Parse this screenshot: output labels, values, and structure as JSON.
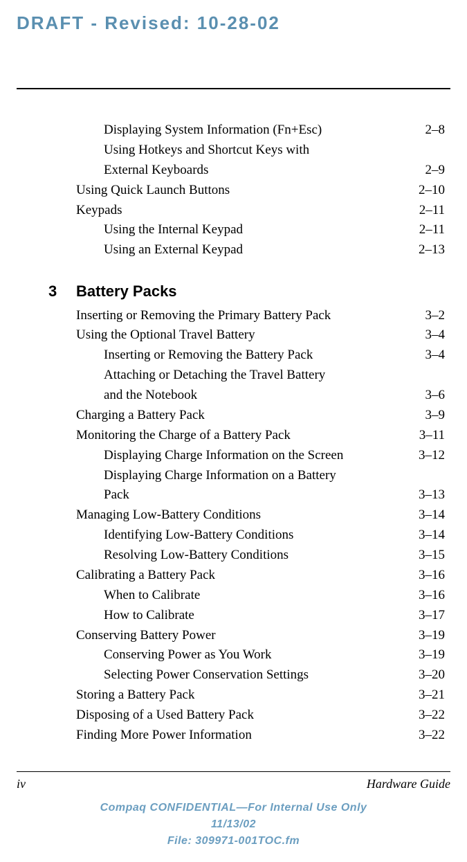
{
  "colors": {
    "draft": "#5a8fb0",
    "confidential": "#6b9ec0",
    "text": "#000000",
    "background": "#ffffff"
  },
  "draft_banner": "DRAFT - Revised: 10-28-02",
  "sections": {
    "pre": [
      {
        "label": "Displaying System Information (Fn+Esc)",
        "page": "2–8",
        "indent": 2
      },
      {
        "label": "Using Hotkeys and Shortcut Keys with External Keyboards",
        "page": "2–9",
        "indent": 2,
        "wrap": true
      },
      {
        "label": "Using Quick Launch Buttons",
        "page": "2–10",
        "indent": 1
      },
      {
        "label": "Keypads",
        "page": "2–11",
        "indent": 1
      },
      {
        "label": "Using the Internal Keypad",
        "page": "2–11",
        "indent": 2
      },
      {
        "label": "Using an External Keypad",
        "page": "2–13",
        "indent": 2
      }
    ],
    "chapter": {
      "number": "3",
      "title": "Battery Packs"
    },
    "main": [
      {
        "label": "Inserting or Removing the Primary Battery Pack",
        "page": "3–2",
        "indent": 1
      },
      {
        "label": "Using the Optional Travel Battery",
        "page": "3–4",
        "indent": 1
      },
      {
        "label": "Inserting or Removing the Battery Pack",
        "page": "3–4",
        "indent": 2
      },
      {
        "label": "Attaching or Detaching the Travel Battery and the Notebook",
        "page": "3–6",
        "indent": 2,
        "wrap": true
      },
      {
        "label": "Charging a Battery Pack",
        "page": "3–9",
        "indent": 1
      },
      {
        "label": "Monitoring the Charge of a Battery Pack",
        "page": "3–11",
        "indent": 1
      },
      {
        "label": "Displaying Charge Information on the Screen",
        "page": "3–12",
        "indent": 2
      },
      {
        "label": "Displaying Charge Information on a Battery Pack",
        "page": "3–13",
        "indent": 2,
        "wrap": true
      },
      {
        "label": "Managing Low-Battery Conditions",
        "page": "3–14",
        "indent": 1
      },
      {
        "label": "Identifying Low-Battery Conditions",
        "page": "3–14",
        "indent": 2
      },
      {
        "label": "Resolving Low-Battery Conditions",
        "page": "3–15",
        "indent": 2
      },
      {
        "label": "Calibrating a Battery Pack",
        "page": "3–16",
        "indent": 1
      },
      {
        "label": "When to Calibrate",
        "page": "3–16",
        "indent": 2
      },
      {
        "label": "How to Calibrate",
        "page": "3–17",
        "indent": 2
      },
      {
        "label": "Conserving Battery Power",
        "page": "3–19",
        "indent": 1
      },
      {
        "label": "Conserving Power as You Work",
        "page": "3–19",
        "indent": 2
      },
      {
        "label": "Selecting Power Conservation Settings",
        "page": "3–20",
        "indent": 2
      },
      {
        "label": "Storing a Battery Pack",
        "page": "3–21",
        "indent": 1
      },
      {
        "label": "Disposing of a Used Battery Pack",
        "page": "3–22",
        "indent": 1
      },
      {
        "label": "Finding More Power Information",
        "page": "3–22",
        "indent": 1
      }
    ]
  },
  "footer": {
    "page_number": "iv",
    "doc_title": "Hardware Guide",
    "confidential_line1": "Compaq CONFIDENTIAL—For Internal Use Only",
    "confidential_line2": "11/13/02",
    "confidential_line3": "File: 309971-001TOC.fm"
  }
}
